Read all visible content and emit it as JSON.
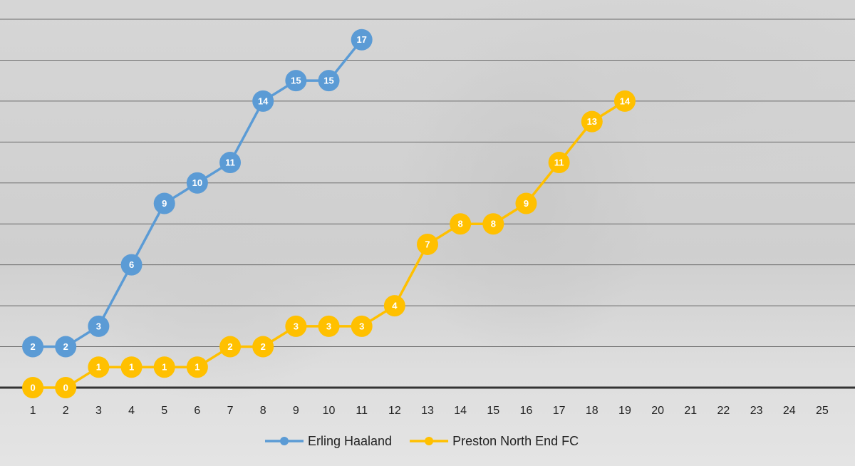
{
  "chart_data": {
    "type": "line",
    "categories": [
      "1",
      "2",
      "3",
      "4",
      "5",
      "6",
      "7",
      "8",
      "9",
      "10",
      "11",
      "12",
      "13",
      "14",
      "15",
      "16",
      "17",
      "18",
      "19",
      "20",
      "21",
      "22",
      "23",
      "24",
      "25"
    ],
    "series": [
      {
        "name": "Erling Haaland",
        "color": "#5b9bd5",
        "values": [
          2,
          2,
          3,
          6,
          9,
          10,
          11,
          14,
          15,
          15,
          17,
          null,
          null,
          null,
          null,
          null,
          null,
          null,
          null,
          null,
          null,
          null,
          null,
          null,
          null
        ]
      },
      {
        "name": "Preston North End FC",
        "color": "#ffc000",
        "values": [
          0,
          0,
          1,
          1,
          1,
          1,
          2,
          2,
          3,
          3,
          3,
          4,
          7,
          8,
          8,
          9,
          11,
          13,
          14,
          null,
          null,
          null,
          null,
          null,
          null
        ]
      }
    ],
    "ylim": [
      0,
      18
    ],
    "yticks": [
      0,
      2,
      4,
      6,
      8,
      10,
      12,
      14,
      16,
      18
    ],
    "grid": true,
    "legend": "bottom"
  }
}
